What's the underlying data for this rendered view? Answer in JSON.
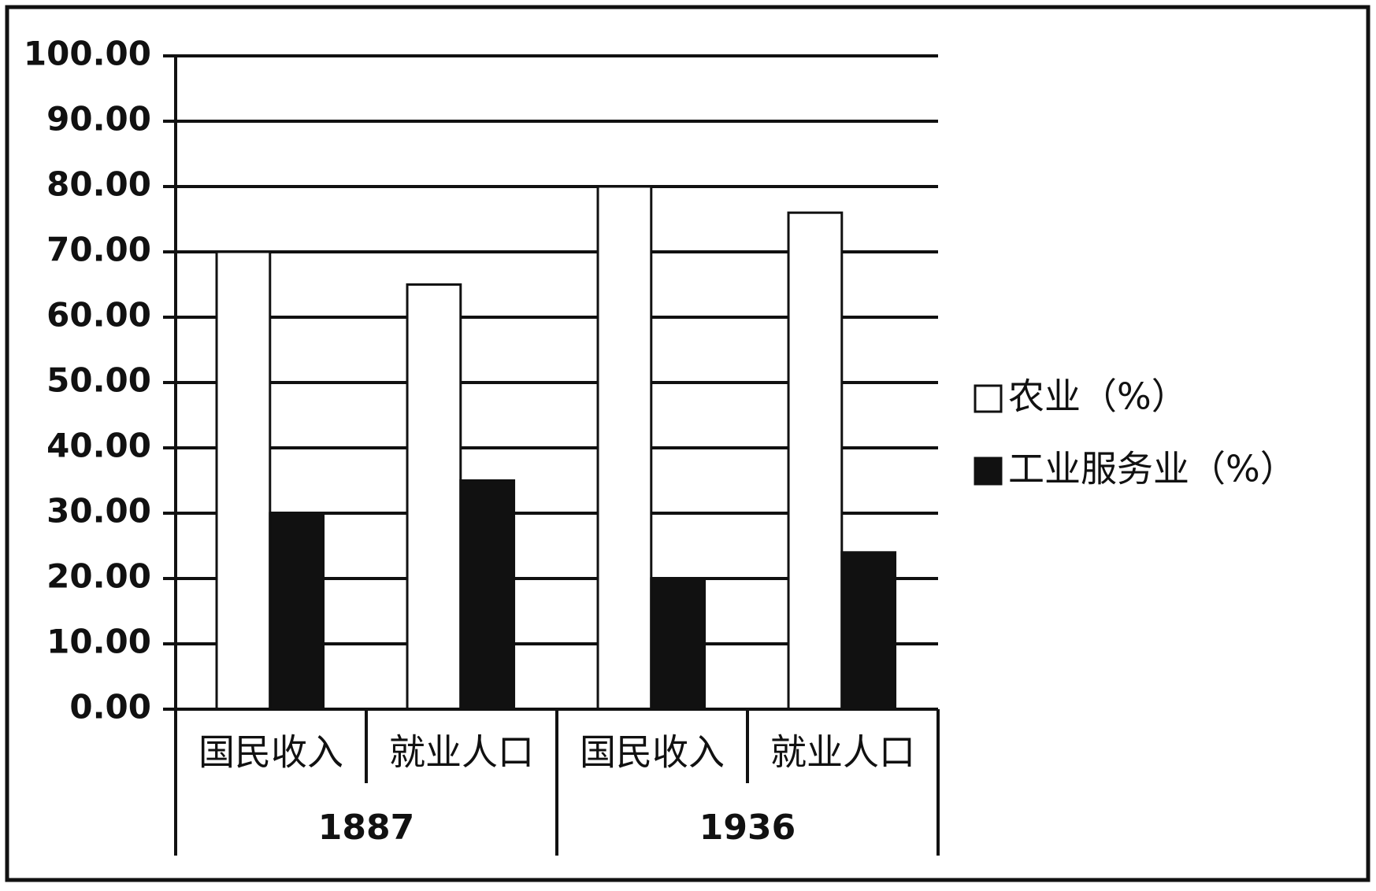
{
  "chart_data": {
    "type": "bar",
    "categories": [
      "国民收入",
      "就业人口",
      "国民收入",
      "就业人口"
    ],
    "groups": [
      "1887",
      "1936"
    ],
    "series": [
      {
        "name": "农业（%）",
        "color": "#ffffff",
        "values": [
          70,
          65,
          80,
          76
        ]
      },
      {
        "name": "工业服务业（%）",
        "color": "#111111",
        "values": [
          30,
          35,
          20,
          24
        ]
      }
    ],
    "ylim": [
      0,
      100
    ],
    "yticks": [
      {
        "value": 0,
        "label": "0.00"
      },
      {
        "value": 10,
        "label": "10.00"
      },
      {
        "value": 20,
        "label": "20.00"
      },
      {
        "value": 30,
        "label": "30.00"
      },
      {
        "value": 40,
        "label": "40.00"
      },
      {
        "value": 50,
        "label": "50.00"
      },
      {
        "value": 60,
        "label": "60.00"
      },
      {
        "value": 70,
        "label": "70.00"
      },
      {
        "value": 80,
        "label": "80.00"
      },
      {
        "value": 90,
        "label": "90.00"
      },
      {
        "value": 100,
        "label": "100.00"
      }
    ],
    "grid": true,
    "legend": "right"
  }
}
